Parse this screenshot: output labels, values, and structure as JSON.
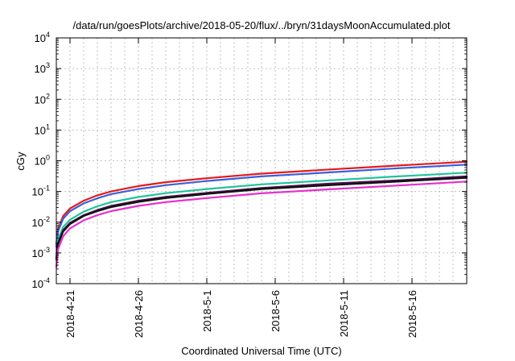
{
  "chart_data": {
    "type": "line",
    "title": "/data/run/goesPlots/archive/2018-05-20/flux/../bryn/31daysMoonAccumulated.plot",
    "xlabel": "Coordinated Universal Time (UTC)",
    "ylabel": "cGy",
    "yscale": "log",
    "ylim": [
      0.0001,
      10000
    ],
    "xlim": [
      "2018-04-20",
      "2018-05-20"
    ],
    "grid": true,
    "legend": "none",
    "y_ticks": [
      {
        "value": 0.0001,
        "base": "10",
        "exp": "-4"
      },
      {
        "value": 0.001,
        "base": "10",
        "exp": "-3"
      },
      {
        "value": 0.01,
        "base": "10",
        "exp": "-2"
      },
      {
        "value": 0.1,
        "base": "10",
        "exp": "-1"
      },
      {
        "value": 1,
        "base": "10",
        "exp": "0"
      },
      {
        "value": 10,
        "base": "10",
        "exp": "1"
      },
      {
        "value": 100,
        "base": "10",
        "exp": "2"
      },
      {
        "value": 1000,
        "base": "10",
        "exp": "3"
      },
      {
        "value": 10000,
        "base": "10",
        "exp": "4"
      }
    ],
    "x_ticks": [
      "2018-4-21",
      "2018-4-26",
      "2018-5-1",
      "2018-5-6",
      "2018-5-11",
      "2018-5-16"
    ],
    "x": [
      "2018-04-20",
      "2018-04-20T03:00",
      "2018-04-20T12:00",
      "2018-04-21",
      "2018-04-22",
      "2018-04-23",
      "2018-04-24",
      "2018-04-26",
      "2018-04-28",
      "2018-05-01",
      "2018-05-05",
      "2018-05-10",
      "2018-05-15",
      "2018-05-20"
    ],
    "series": [
      {
        "color": "#e41a1c",
        "values": [
          0.002,
          0.006,
          0.016,
          0.028,
          0.05,
          0.075,
          0.1,
          0.15,
          0.2,
          0.27,
          0.38,
          0.52,
          0.7,
          0.93
        ]
      },
      {
        "color": "#3a5fd9",
        "values": [
          0.0016,
          0.005,
          0.013,
          0.023,
          0.041,
          0.06,
          0.082,
          0.12,
          0.16,
          0.22,
          0.31,
          0.42,
          0.57,
          0.75
        ]
      },
      {
        "color": "#1fc39a",
        "values": [
          0.0009,
          0.0028,
          0.007,
          0.012,
          0.022,
          0.033,
          0.045,
          0.066,
          0.088,
          0.12,
          0.17,
          0.23,
          0.31,
          0.41
        ]
      },
      {
        "color": "#4b0d4e",
        "values": [
          0.0007,
          0.0021,
          0.0055,
          0.0095,
          0.017,
          0.025,
          0.034,
          0.05,
          0.067,
          0.09,
          0.13,
          0.18,
          0.23,
          0.31
        ]
      },
      {
        "color": "#111111",
        "values": [
          0.0006,
          0.0019,
          0.005,
          0.0087,
          0.016,
          0.023,
          0.031,
          0.046,
          0.061,
          0.083,
          0.12,
          0.16,
          0.21,
          0.28
        ]
      },
      {
        "color": "#e62fcf",
        "values": [
          0.00035,
          0.0013,
          0.0035,
          0.0063,
          0.0115,
          0.017,
          0.023,
          0.034,
          0.045,
          0.061,
          0.087,
          0.118,
          0.157,
          0.21
        ]
      }
    ]
  }
}
